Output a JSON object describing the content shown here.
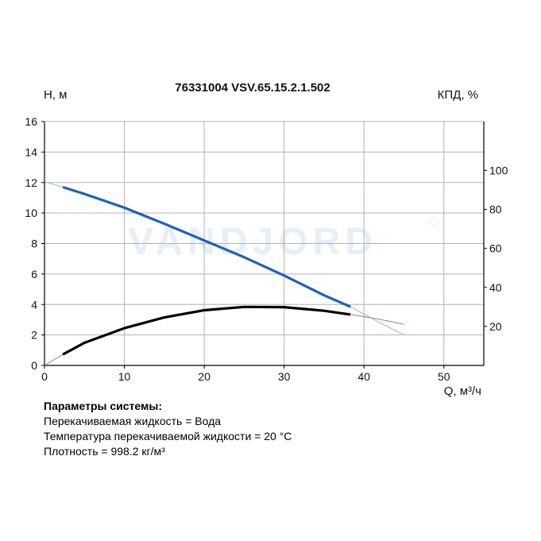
{
  "chart_data": {
    "type": "line",
    "title": "76331004 VSV.65.15.2.1.502",
    "ylabel": "H, м",
    "y2label": "КПД, %",
    "xlabel": "Q, м³/ч",
    "xlim": [
      0,
      55
    ],
    "ylim": [
      0,
      16
    ],
    "y2lim": [
      0,
      125
    ],
    "x_ticks": [
      "0",
      "10",
      "20",
      "30",
      "40",
      "50"
    ],
    "y_ticks": [
      "0",
      "2",
      "4",
      "6",
      "8",
      "10",
      "12",
      "14",
      "16"
    ],
    "y2_ticks": [
      "20",
      "40",
      "60",
      "80",
      "100"
    ],
    "grid": true,
    "watermark": "VANDJORD",
    "series": [
      {
        "axis": "left",
        "color": "#1f5fbf",
        "extension_color": "#8fb6e8",
        "operating_range": [
          2.3,
          38.3
        ],
        "x": [
          0,
          2.3,
          5,
          10,
          15,
          20,
          25,
          30,
          35,
          38.3,
          42,
          45
        ],
        "y": [
          12.05,
          11.7,
          11.25,
          10.35,
          9.3,
          8.2,
          7.1,
          5.9,
          4.6,
          3.85,
          2.8,
          2.0
        ]
      },
      {
        "axis": "right",
        "color": "#000000",
        "extension_color": "#888888",
        "operating_range": [
          2.3,
          38.3
        ],
        "x": [
          0,
          2.3,
          5,
          10,
          15,
          20,
          25,
          30,
          35,
          38.3,
          42,
          45
        ],
        "y": [
          0,
          5.6,
          11.6,
          19.1,
          24.6,
          28.3,
          30.0,
          29.9,
          28.0,
          26.1,
          23.6,
          21.1
        ]
      }
    ]
  },
  "params": {
    "title": "Параметры системы:",
    "line1": "Перекачиваемая жидкость = Вода",
    "line2": "Температура перекачиваемой жидкости = 20 °C",
    "line3": "Плотность = 998.2 кг/м³"
  }
}
